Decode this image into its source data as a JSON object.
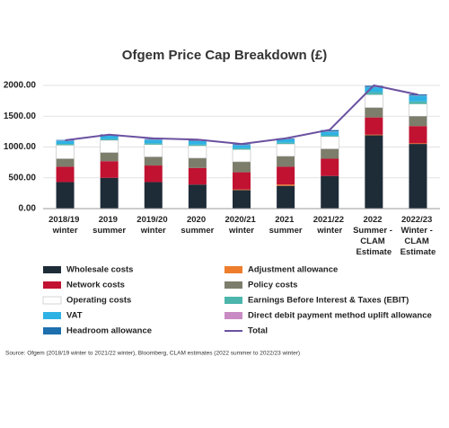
{
  "chart_data": {
    "type": "stacked-bar-line",
    "title": "Ofgem Price Cap Breakdown (£)",
    "categories": [
      "2018/19 winter",
      "2019 summer",
      "2019/20 winter",
      "2020 summer",
      "2020/21 winter",
      "2021 summer",
      "2021/22 winter",
      "2022 Summer - CLAM Estimate",
      "2022/23 Winter - CLAM Estimate"
    ],
    "series": [
      {
        "name": "Wholesale costs",
        "color": "#1e2c38",
        "values": [
          430,
          500,
          430,
          390,
          300,
          370,
          530,
          1190,
          1050
        ]
      },
      {
        "name": "Adjustment allowance",
        "color": "#ee7d2c",
        "values": [
          0,
          0,
          0,
          0,
          10,
          20,
          0,
          10,
          10
        ]
      },
      {
        "name": "Network costs",
        "color": "#c11232",
        "values": [
          250,
          270,
          270,
          270,
          280,
          290,
          280,
          280,
          280
        ]
      },
      {
        "name": "Policy costs",
        "color": "#7d7d6c",
        "values": [
          130,
          140,
          140,
          160,
          170,
          170,
          160,
          160,
          160
        ]
      },
      {
        "name": "Operating costs",
        "color": "#ffffff",
        "values": [
          220,
          200,
          200,
          200,
          200,
          200,
          200,
          210,
          200
        ]
      },
      {
        "name": "Earnings Before Interest & Taxes (EBIT)",
        "color": "#4db6ac",
        "values": [
          20,
          20,
          20,
          20,
          20,
          20,
          20,
          40,
          40
        ]
      },
      {
        "name": "VAT",
        "color": "#2eb2e4",
        "values": [
          50,
          60,
          55,
          55,
          50,
          55,
          60,
          80,
          90
        ]
      },
      {
        "name": "Direct debit payment method uplift allowance",
        "color": "#c98bc4",
        "values": [
          5,
          5,
          5,
          5,
          5,
          5,
          5,
          5,
          5
        ]
      },
      {
        "name": "Headroom allowance",
        "color": "#1d6fae",
        "values": [
          10,
          10,
          10,
          10,
          10,
          10,
          20,
          20,
          20
        ]
      },
      {
        "name": "Total",
        "color": "#6b51a0",
        "type": "line",
        "values": [
          1110,
          1200,
          1140,
          1120,
          1050,
          1140,
          1280,
          2000,
          1850
        ]
      }
    ],
    "ylim": [
      0,
      2000
    ],
    "yticks": [
      {
        "value": 0,
        "label": "0.00"
      },
      {
        "value": 500,
        "label": "500.00"
      },
      {
        "value": 1000,
        "label": "1000.00"
      },
      {
        "value": 1500,
        "label": "1500.00"
      },
      {
        "value": 2000,
        "label": "2000.00"
      }
    ],
    "grid": true,
    "source": "Source: Ofgem (2018/19 winter to 2021/22 winter), Bloomberg, CLAM estimates (2022 summer to 2022/23 winter)"
  }
}
